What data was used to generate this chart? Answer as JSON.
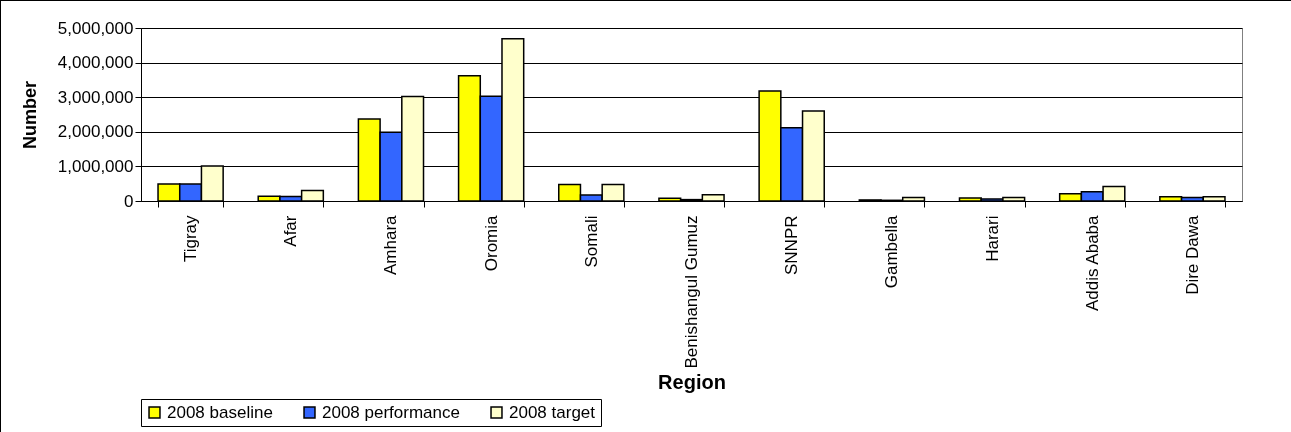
{
  "chart_data": {
    "type": "bar",
    "xlabel": "Region",
    "ylabel": "Number",
    "categories": [
      "Tigray",
      "Afar",
      "Amhara",
      "Oromia",
      "Somali",
      "Benishangul Gumuz",
      "SNNPR",
      "Gambella",
      "Harari",
      "Addis Ababa",
      "Dire Dawa"
    ],
    "series": [
      {
        "name": "2008 baseline",
        "color": "#ffff00",
        "values": [
          490000,
          140000,
          2370000,
          3620000,
          480000,
          80000,
          3180000,
          30000,
          90000,
          210000,
          120000
        ]
      },
      {
        "name": "2008 performance",
        "color": "#3366ff",
        "values": [
          490000,
          130000,
          1990000,
          3030000,
          170000,
          40000,
          2120000,
          20000,
          60000,
          270000,
          100000
        ]
      },
      {
        "name": "2008 target",
        "color": "#ffffcc",
        "values": [
          1010000,
          300000,
          3020000,
          4690000,
          480000,
          180000,
          2600000,
          100000,
          100000,
          420000,
          120000
        ]
      }
    ],
    "ylim": [
      0,
      5000000
    ],
    "yticks": [
      0,
      {
        "value": 1000000,
        "label": "1,000,000"
      },
      {
        "value": 2000000,
        "label": "2,000,000"
      },
      {
        "value": 3000000,
        "label": "3,000,000"
      },
      {
        "value": 4000000,
        "label": "4,000,000"
      },
      {
        "value": 5000000,
        "label": "5,000,000"
      }
    ],
    "grid": "y",
    "legend": "bottom"
  }
}
